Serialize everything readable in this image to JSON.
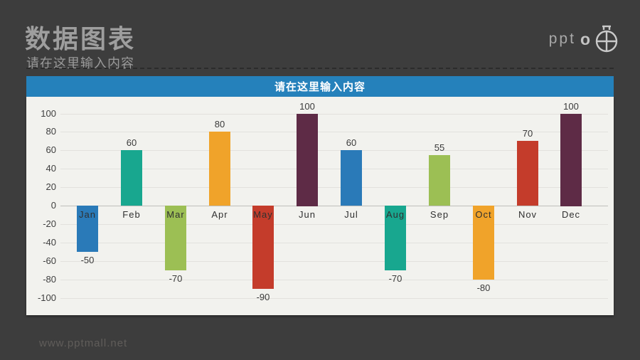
{
  "header": {
    "title": "数据图表",
    "subtitle": "请在这里输入内容",
    "logo_text": "ppt",
    "logo_o": "o"
  },
  "chart_header": {
    "label": "请在这里输入内容"
  },
  "footer": {
    "watermark": "www.pptmall.net"
  },
  "colors": {
    "background": "#3d3d3d",
    "accent_blue": "#2581bb",
    "panel_background": "#f2f2ee",
    "gridline": "#e2e1dd",
    "zero_line": "#bfbebb",
    "title_gray": "#9e9e9e"
  },
  "chart_data": {
    "type": "bar",
    "title": "请在这里输入内容",
    "xlabel": "",
    "ylabel": "",
    "categories": [
      "Jan",
      "Feb",
      "Mar",
      "Apr",
      "May",
      "Jun",
      "Jul",
      "Aug",
      "Sep",
      "Oct",
      "Nov",
      "Dec"
    ],
    "values": [
      -50,
      60,
      -70,
      80,
      -90,
      100,
      60,
      -70,
      55,
      -80,
      70,
      100
    ],
    "bar_colors": [
      "#2a7ab8",
      "#18a78f",
      "#9cbf54",
      "#f0a32a",
      "#c43c2b",
      "#5e2b46",
      "#2a7ab8",
      "#18a78f",
      "#9cbf54",
      "#f0a32a",
      "#c43c2b",
      "#5e2b46"
    ],
    "data_labels": [
      "-50",
      "60",
      "-70",
      "80",
      "-90",
      "100",
      "60",
      "-70",
      "55",
      "-80",
      "70",
      "100"
    ],
    "ylim": [
      -100,
      100
    ],
    "ytick_step": 20,
    "grid": true,
    "legend": "none"
  }
}
